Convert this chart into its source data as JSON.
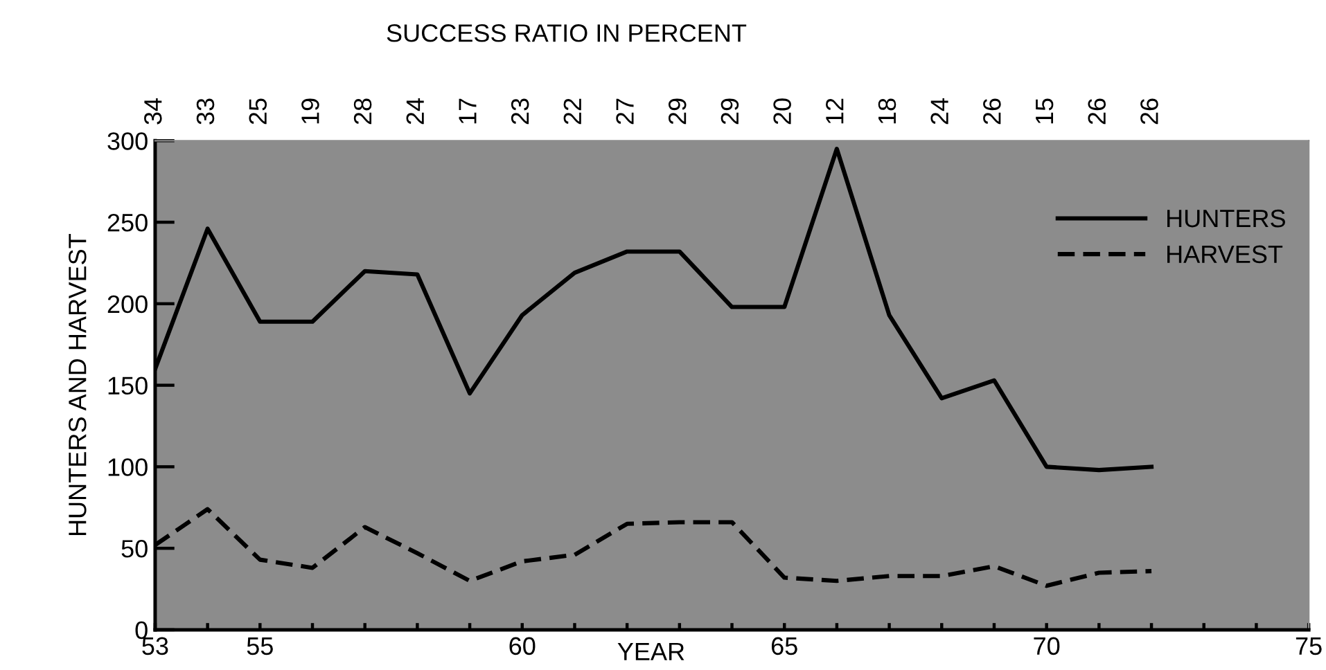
{
  "chart_data": {
    "type": "line",
    "xlabel": "YEAR",
    "ylabel": "HUNTERS AND HARVEST",
    "x2label": "SUCCESS RATIO IN PERCENT",
    "x": [
      53,
      54,
      55,
      56,
      57,
      58,
      59,
      60,
      61,
      62,
      63,
      64,
      65,
      66,
      67,
      68,
      69,
      70,
      71,
      72
    ],
    "series": [
      {
        "name": "HUNTERS",
        "color": "#000000",
        "line_style": "solid",
        "values": [
          160,
          246,
          189,
          189,
          220,
          218,
          145,
          193,
          219,
          232,
          232,
          198,
          198,
          295,
          193,
          142,
          153,
          100,
          98,
          100
        ]
      },
      {
        "name": "HARVEST",
        "color": "#000000",
        "line_style": "dashed",
        "values": [
          52,
          74,
          43,
          38,
          63,
          47,
          30,
          42,
          46,
          65,
          66,
          66,
          32,
          30,
          33,
          33,
          39,
          27,
          35,
          36
        ]
      }
    ],
    "xlim": [
      53,
      75
    ],
    "xticks": [
      53,
      {
        "value": 54,
        "label": null
      },
      55,
      {
        "value": 56,
        "label": null
      },
      {
        "value": 57,
        "label": null
      },
      {
        "value": 58,
        "label": null
      },
      {
        "value": 59,
        "label": null
      },
      60,
      {
        "value": 61,
        "label": null
      },
      {
        "value": 62,
        "label": null
      },
      {
        "value": 63,
        "label": null
      },
      {
        "value": 64,
        "label": null
      },
      65,
      {
        "value": 66,
        "label": null
      },
      {
        "value": 67,
        "label": null
      },
      {
        "value": 68,
        "label": null
      },
      {
        "value": 69,
        "label": null
      },
      70,
      {
        "value": 71,
        "label": null
      },
      {
        "value": 72,
        "label": null
      },
      {
        "value": 73,
        "label": null
      },
      {
        "value": 74,
        "label": null
      },
      75
    ],
    "annotations": [
      "34",
      "33",
      "25",
      "19",
      "28",
      "24",
      "17",
      "23",
      "22",
      "27",
      "29",
      "29",
      "20",
      "12",
      "18",
      "24",
      "26",
      "15",
      "26",
      "26"
    ],
    "ylim": [
      0,
      300
    ],
    "yticks": [
      0,
      50,
      100,
      150,
      200,
      250,
      300
    ],
    "grid": false,
    "legend": "right"
  }
}
